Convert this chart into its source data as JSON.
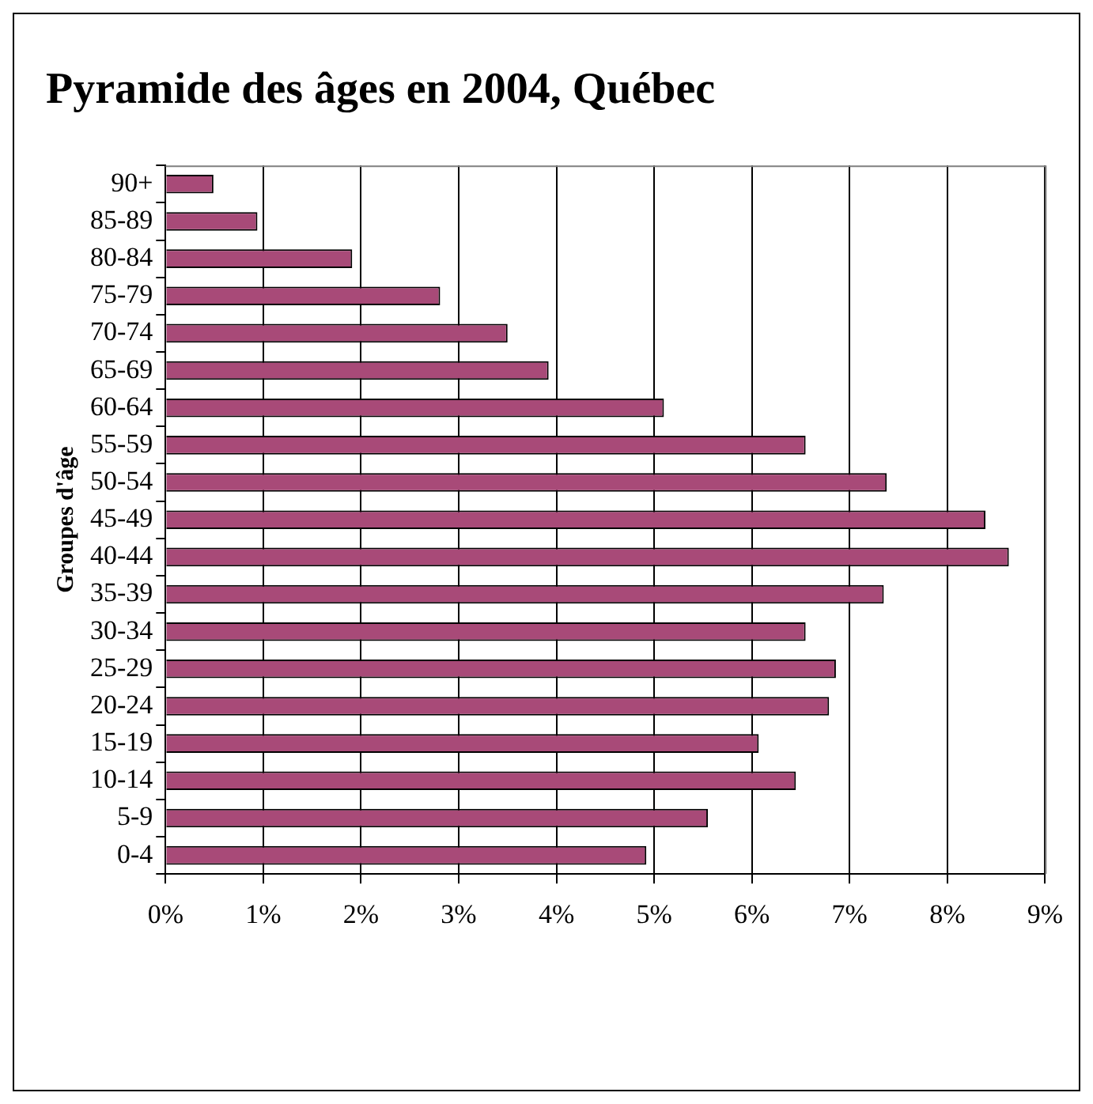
{
  "chart_data": {
    "type": "bar",
    "orientation": "horizontal",
    "title": "Pyramide des âges en 2004, Québec",
    "ylabel": "Groupes d'âge",
    "categories": [
      "90+",
      "85-89",
      "80-84",
      "75-79",
      "70-74",
      "65-69",
      "60-64",
      "55-59",
      "50-54",
      "45-49",
      "40-44",
      "35-39",
      "30-34",
      "25-29",
      "20-24",
      "15-19",
      "10-14",
      "5-9",
      "0-4"
    ],
    "values": [
      0.49,
      0.94,
      1.91,
      2.81,
      3.5,
      3.92,
      5.1,
      6.55,
      7.38,
      8.39,
      8.63,
      7.35,
      6.55,
      6.86,
      6.79,
      6.07,
      6.45,
      5.55,
      4.92
    ],
    "color": "#a84a78",
    "xlim": [
      0,
      9
    ],
    "xticks": [
      {
        "value": 0,
        "label": "0%"
      },
      {
        "value": 1,
        "label": "1%"
      },
      {
        "value": 2,
        "label": "2%"
      },
      {
        "value": 3,
        "label": "3%"
      },
      {
        "value": 4,
        "label": "4%"
      },
      {
        "value": 5,
        "label": "5%"
      },
      {
        "value": 6,
        "label": "6%"
      },
      {
        "value": 7,
        "label": "7%"
      },
      {
        "value": 8,
        "label": "8%"
      },
      {
        "value": 9,
        "label": "9%"
      }
    ],
    "grid": "x",
    "legend": false
  }
}
